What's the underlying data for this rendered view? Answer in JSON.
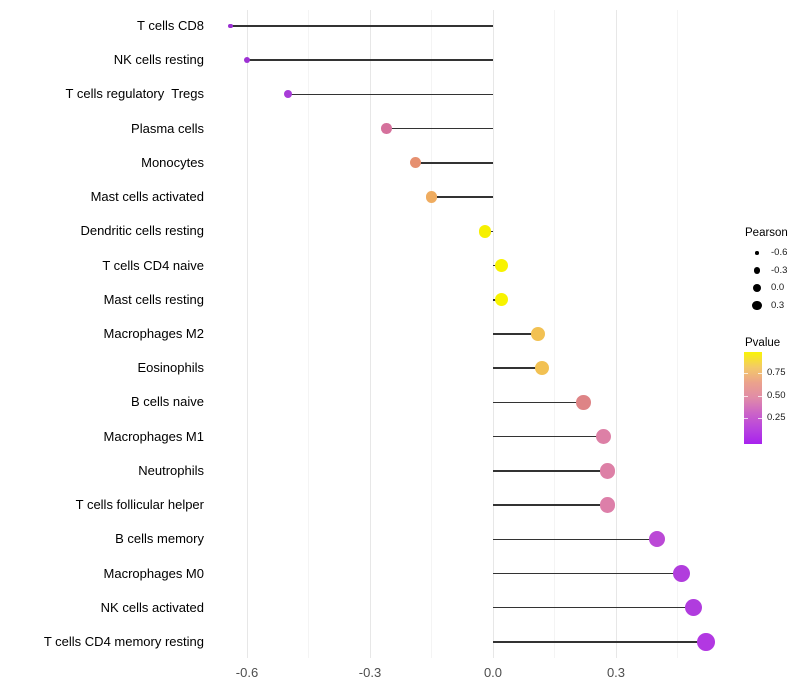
{
  "chart_data": {
    "type": "scatter",
    "variant": "lollipop",
    "title": "",
    "xlabel": "",
    "ylabel": "",
    "xlim": [
      -0.66,
      0.59
    ],
    "x_major_ticks": [
      "-0.6",
      "-0.3",
      "0.0",
      "0.3"
    ],
    "x_major_values": [
      -0.6,
      -0.3,
      0.0,
      0.3
    ],
    "x_minor_values": [
      -0.45,
      -0.15,
      0.15,
      0.45
    ],
    "grid": "vertical major+minor, light gray on white",
    "legend_position": "right",
    "points": [
      {
        "label": "T cells CD8",
        "pearson": -0.64,
        "color": "#9A2FD1",
        "radius": 2.2
      },
      {
        "label": "NK cells resting",
        "pearson": -0.6,
        "color": "#9D31D3",
        "radius": 3.0
      },
      {
        "label": "T cells regulatory  Tregs",
        "pearson": -0.5,
        "color": "#A83CD8",
        "radius": 4.0
      },
      {
        "label": "Plasma cells",
        "pearson": -0.26,
        "color": "#D5719C",
        "radius": 5.2
      },
      {
        "label": "Monocytes",
        "pearson": -0.19,
        "color": "#E69070",
        "radius": 5.5
      },
      {
        "label": "Mast cells activated",
        "pearson": -0.15,
        "color": "#EFAC60",
        "radius": 5.9
      },
      {
        "label": "Dendritic cells resting",
        "pearson": -0.02,
        "color": "#F6F000",
        "radius": 6.3
      },
      {
        "label": "T cells CD4 naive",
        "pearson": 0.02,
        "color": "#F8F300",
        "radius": 6.6
      },
      {
        "label": "Mast cells resting",
        "pearson": 0.02,
        "color": "#F8F300",
        "radius": 6.6
      },
      {
        "label": "Macrophages M2",
        "pearson": 0.11,
        "color": "#F2C153",
        "radius": 7.0
      },
      {
        "label": "Eosinophils",
        "pearson": 0.12,
        "color": "#F2C153",
        "radius": 7.0
      },
      {
        "label": "B cells naive",
        "pearson": 0.22,
        "color": "#DE8486",
        "radius": 7.4
      },
      {
        "label": "Macrophages M1",
        "pearson": 0.27,
        "color": "#DD80A6",
        "radius": 7.6
      },
      {
        "label": "Neutrophils",
        "pearson": 0.28,
        "color": "#DD80A6",
        "radius": 7.7
      },
      {
        "label": "T cells follicular helper",
        "pearson": 0.28,
        "color": "#DD7FA9",
        "radius": 7.7
      },
      {
        "label": "B cells memory",
        "pearson": 0.4,
        "color": "#BB49D6",
        "radius": 8.2
      },
      {
        "label": "Macrophages M0",
        "pearson": 0.46,
        "color": "#B13DDD",
        "radius": 8.5
      },
      {
        "label": "NK cells activated",
        "pearson": 0.49,
        "color": "#B03CDE",
        "radius": 8.6
      },
      {
        "label": "T cells CD4 memory resting",
        "pearson": 0.52,
        "color": "#B238E2",
        "radius": 8.9
      }
    ],
    "legend": {
      "size": {
        "title": "Pearson",
        "dot_color": "#000000",
        "items": [
          {
            "label": "-0.6",
            "radius": 1.8
          },
          {
            "label": "-0.3",
            "radius": 3.1
          },
          {
            "label": "0.0",
            "radius": 4.2
          },
          {
            "label": "0.3",
            "radius": 4.8
          }
        ]
      },
      "color": {
        "title": "Pvalue",
        "tick_labels": [
          "0.75",
          "0.50",
          "0.25"
        ],
        "gradient_top_to_bottom": [
          "#F9F407",
          "#F3C968",
          "#EBA28C",
          "#E08BA8",
          "#CB63C8",
          "#B844DE",
          "#A822EE"
        ]
      }
    },
    "colors": {
      "stem": "#333333",
      "grid_major": "#E7E7E7",
      "grid_minor": "#F4F4F4",
      "axis_text": "#4D4D4D",
      "label_text": "#000000",
      "background": "#FFFFFF"
    }
  }
}
